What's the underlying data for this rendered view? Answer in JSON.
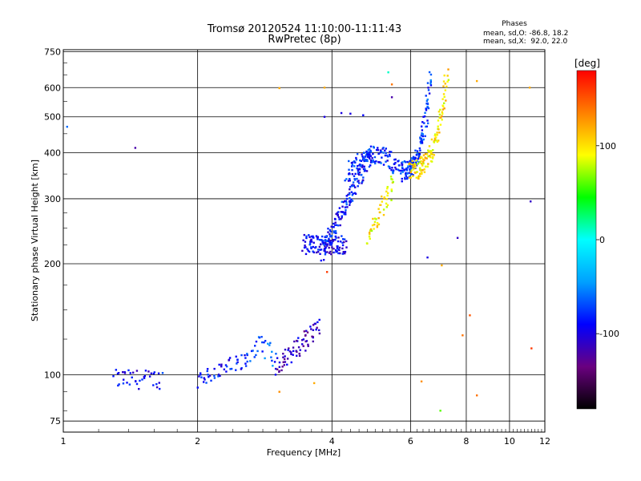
{
  "chart_data": {
    "type": "scatter",
    "title": "Tromsø 20120524 11:10:00-11:11:43",
    "subtitle": "RwPretec (8p)",
    "xlabel": "Frequency [MHz]",
    "ylabel": "Stationary phase Virtual Height [km]",
    "xscale": "log",
    "yscale": "log",
    "xlim": [
      1,
      12
    ],
    "ylim": [
      70,
      760
    ],
    "x_ticks": [
      1,
      2,
      4,
      6,
      8,
      10,
      12
    ],
    "y_ticks": [
      75,
      100,
      200,
      300,
      400,
      500,
      600,
      750
    ],
    "grid": true,
    "stats": {
      "heading": "Phases",
      "line1": "mean, sd,O: -86.8, 18.2",
      "line2": "mean, sd,X:  92.0, 22.0"
    },
    "colorbar": {
      "label": "[deg]",
      "range": [
        -180,
        180
      ],
      "ticks": [
        100,
        0,
        -100
      ],
      "colors": [
        "#000000",
        "#6a0080",
        "#0000ff",
        "#00a0ff",
        "#00ffff",
        "#00ff00",
        "#ffff00",
        "#ff8000",
        "#ff0000"
      ]
    },
    "segments": [
      {
        "name": "",
        "phase": -92,
        "x_range": [
          1.3,
          1.66
        ],
        "y_range": [
          93,
          102
        ],
        "shape": "flat",
        "count": 40
      },
      {
        "name": "",
        "phase": -90,
        "x_range": [
          2.0,
          2.55
        ],
        "y_range": [
          98,
          108
        ],
        "shape": "rise",
        "count": 45
      },
      {
        "name": "",
        "phase": -70,
        "x_range": [
          2.55,
          3.0
        ],
        "y_range": [
          104,
          120
        ],
        "shape": "bump",
        "count": 30
      },
      {
        "name": "",
        "phase": -110,
        "x_range": [
          3.0,
          3.75
        ],
        "y_range": [
          105,
          135
        ],
        "shape": "rise",
        "count": 70
      },
      {
        "name": "",
        "phase": -95,
        "x_range": [
          3.45,
          4.3
        ],
        "y_range": [
          200,
          255
        ],
        "shape": "flat",
        "count": 110
      },
      {
        "name": "",
        "phase": -85,
        "x_range": [
          3.8,
          4.9
        ],
        "y_range": [
          215,
          400
        ],
        "shape": "rise",
        "count": 150
      },
      {
        "name": "",
        "phase": -80,
        "x_range": [
          4.3,
          5.8
        ],
        "y_range": [
          330,
          395
        ],
        "shape": "bump",
        "count": 130
      },
      {
        "name": "",
        "phase": -75,
        "x_range": [
          5.8,
          6.65
        ],
        "y_range": [
          360,
          650
        ],
        "shape": "hook",
        "count": 130
      },
      {
        "name": "",
        "phase": 95,
        "x_range": [
          4.8,
          5.5
        ],
        "y_range": [
          235,
          330
        ],
        "shape": "rise",
        "count": 50
      },
      {
        "name": "",
        "phase": 100,
        "x_range": [
          6.0,
          7.25
        ],
        "y_range": [
          360,
          650
        ],
        "shape": "hook",
        "count": 130
      }
    ],
    "scattered_points": [
      {
        "x": 1.02,
        "y": 470,
        "phase": -60
      },
      {
        "x": 1.45,
        "y": 412,
        "phase": -120
      },
      {
        "x": 3.05,
        "y": 598,
        "phase": 120
      },
      {
        "x": 3.85,
        "y": 600,
        "phase": 120
      },
      {
        "x": 3.85,
        "y": 500,
        "phase": -100
      },
      {
        "x": 3.9,
        "y": 190,
        "phase": 160
      },
      {
        "x": 3.05,
        "y": 90,
        "phase": 130
      },
      {
        "x": 3.65,
        "y": 95,
        "phase": 120
      },
      {
        "x": 4.2,
        "y": 512,
        "phase": -100
      },
      {
        "x": 4.4,
        "y": 510,
        "phase": -100
      },
      {
        "x": 4.7,
        "y": 505,
        "phase": -90
      },
      {
        "x": 5.35,
        "y": 660,
        "phase": 10
      },
      {
        "x": 5.45,
        "y": 612,
        "phase": 140
      },
      {
        "x": 5.45,
        "y": 565,
        "phase": -120
      },
      {
        "x": 6.35,
        "y": 96,
        "phase": 130
      },
      {
        "x": 6.55,
        "y": 208,
        "phase": -100
      },
      {
        "x": 7.0,
        "y": 80,
        "phase": 60
      },
      {
        "x": 7.05,
        "y": 198,
        "phase": 120
      },
      {
        "x": 7.65,
        "y": 235,
        "phase": -110
      },
      {
        "x": 7.85,
        "y": 128,
        "phase": 140
      },
      {
        "x": 8.15,
        "y": 145,
        "phase": 150
      },
      {
        "x": 8.45,
        "y": 625,
        "phase": 120
      },
      {
        "x": 8.45,
        "y": 88,
        "phase": 140
      },
      {
        "x": 11.1,
        "y": 600,
        "phase": 120
      },
      {
        "x": 11.2,
        "y": 118,
        "phase": 160
      },
      {
        "x": 11.15,
        "y": 295,
        "phase": -110
      }
    ]
  }
}
